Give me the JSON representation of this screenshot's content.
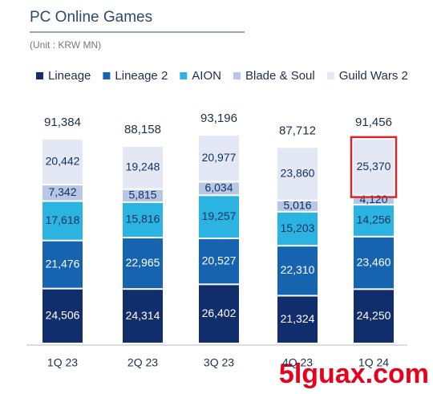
{
  "chart_data": {
    "type": "stacked-bar",
    "title": "PC Online Games",
    "subtitle": "(Unit : KRW MN)",
    "categories": [
      "1Q 23",
      "2Q 23",
      "3Q 23",
      "4Q 23",
      "1Q 24"
    ],
    "series": [
      {
        "name": "Lineage",
        "color": "#112d6b",
        "label_color": "#ffffff",
        "values": [
          24506,
          24314,
          26402,
          21324,
          24250
        ],
        "value_labels": [
          "24,506",
          "24,314",
          "26,402",
          "21,324",
          "24,250"
        ]
      },
      {
        "name": "Lineage 2",
        "color": "#1663b0",
        "label_color": "#ffffff",
        "values": [
          21476,
          22965,
          20527,
          22310,
          23460
        ],
        "value_labels": [
          "21,476",
          "22,965",
          "20,527",
          "22,310",
          "23,460"
        ]
      },
      {
        "name": "AION",
        "color": "#2bb4e2",
        "label_color": "#12305e",
        "values": [
          17618,
          15816,
          19257,
          15203,
          14256
        ],
        "value_labels": [
          "17,618",
          "15,816",
          "19,257",
          "15,203",
          "14,256"
        ]
      },
      {
        "name": "Blade & Soul",
        "color": "#b8c7e6",
        "label_color": "#12305e",
        "values": [
          7342,
          5815,
          6034,
          5016,
          4120
        ],
        "value_labels": [
          "7,342",
          "5,815",
          "6,034",
          "5,016",
          "4,120"
        ]
      },
      {
        "name": "Guild Wars 2",
        "color": "#e3e8f4",
        "label_color": "#12305e",
        "values": [
          20442,
          19248,
          20977,
          23860,
          25370
        ],
        "value_labels": [
          "20,442",
          "19,248",
          "20,977",
          "23,860",
          "25,370"
        ]
      }
    ],
    "totals": [
      91384,
      88158,
      93196,
      87712,
      91456
    ],
    "total_labels": [
      "91,384",
      "88,158",
      "93,196",
      "87,712",
      "91,456"
    ],
    "highlight": {
      "series": 4,
      "index": 4,
      "color": "#d9262c"
    },
    "watermark": "5lguax.com"
  }
}
